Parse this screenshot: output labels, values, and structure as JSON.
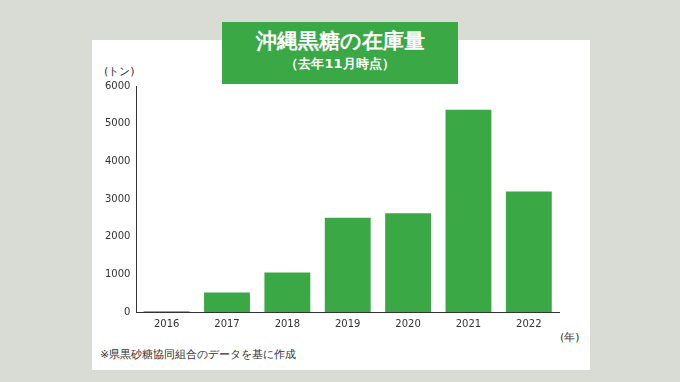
{
  "chart_data": {
    "type": "bar",
    "title": "沖縄黒糖の在庫量",
    "subtitle": "（去年11月時点）",
    "y_label": "(トン)",
    "x_label": "(年)",
    "note": "※県黒砂糖協同組合のデータを基に作成",
    "categories": [
      "2016",
      "2017",
      "2018",
      "2019",
      "2020",
      "2021",
      "2022"
    ],
    "values": [
      20,
      520,
      1050,
      2500,
      2620,
      5370,
      3200
    ],
    "color": "#3aa945",
    "ylim": [
      0,
      6000
    ],
    "yticks": [
      0,
      1000,
      2000,
      3000,
      4000,
      5000,
      6000
    ],
    "grid": false
  }
}
